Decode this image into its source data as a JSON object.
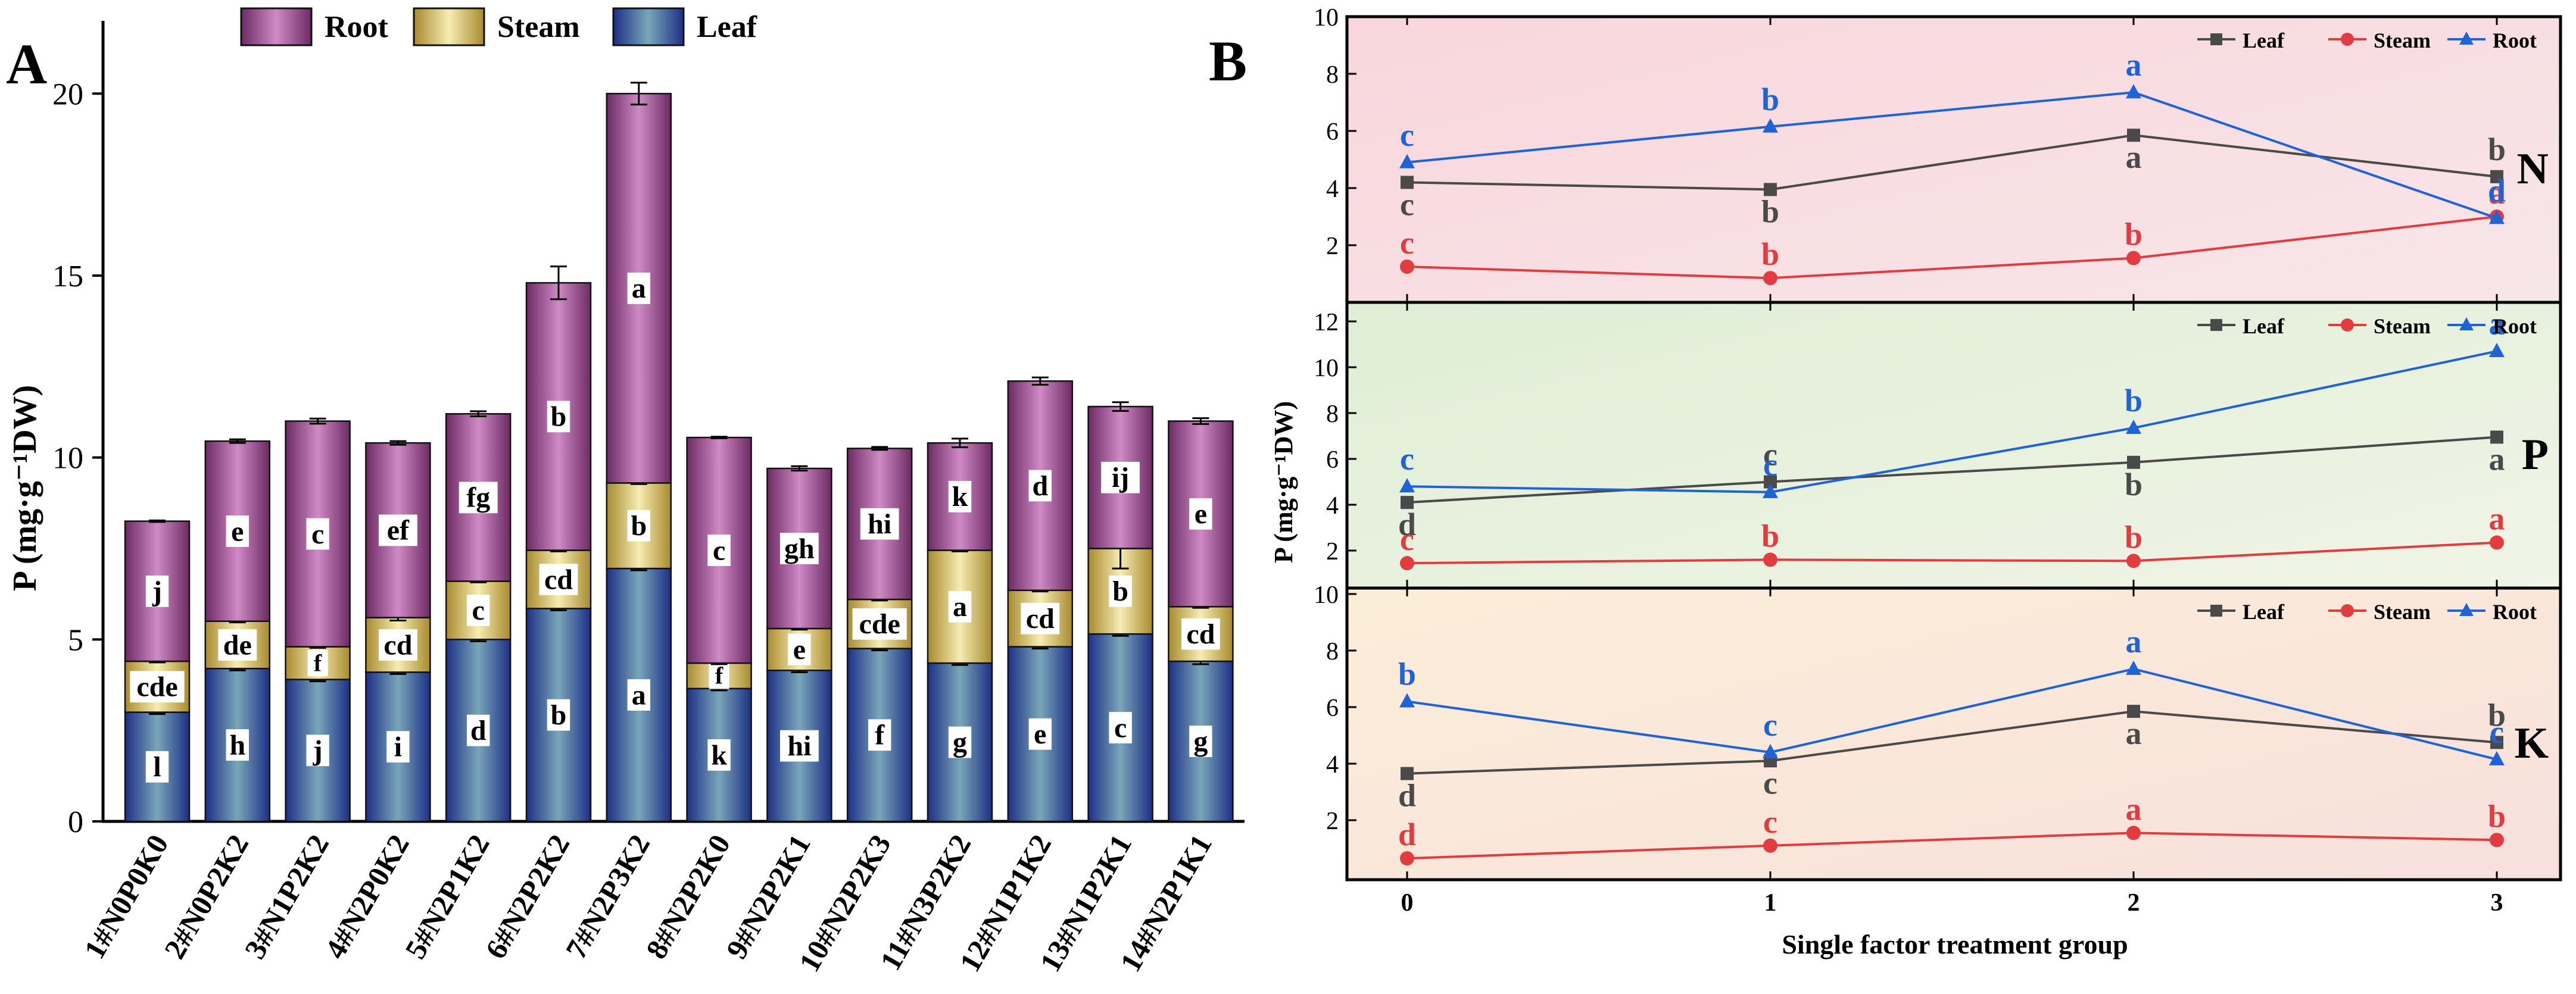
{
  "panelA": {
    "label": "A",
    "ylabel": "P (mg·g⁻¹DW)",
    "ylim": [
      0,
      22
    ],
    "yticks": [
      0,
      5,
      10,
      15,
      20
    ],
    "legend": [
      {
        "name": "Root",
        "color": "#a04d95"
      },
      {
        "name": "Steam",
        "color": "#d8c770"
      },
      {
        "name": "Leaf",
        "color": "#3d5fa3"
      }
    ]
  },
  "panelB": {
    "label": "B",
    "xlabel": "Single factor treatment group",
    "ylabel": "P (mg·g⁻¹DW)",
    "xticks": [
      0,
      1,
      2,
      3
    ],
    "colors": {
      "Leaf": "#4a4a4a",
      "Steam": "#e23c41",
      "Root": "#1f63d6"
    }
  },
  "chart_data": [
    {
      "type": "bar",
      "stacked": true,
      "title": "A",
      "xlabel": "",
      "ylabel": "P (mg·g⁻¹DW)",
      "ylim": [
        0,
        22
      ],
      "categories": [
        "1#N0P0K0",
        "2#N0P2K2",
        "3#N1P2K2",
        "4#N2P0K2",
        "5#N2P1K2",
        "6#N2P2K2",
        "7#N2P3K2",
        "8#N2P2K0",
        "9#N2P2K1",
        "10#N2P2K3",
        "11#N3P2K2",
        "12#N1P1K2",
        "13#N1P2K1",
        "14#N2P1K1"
      ],
      "series": [
        {
          "name": "Leaf",
          "values": [
            3.0,
            4.2,
            3.9,
            4.1,
            5.0,
            5.85,
            6.95,
            3.65,
            4.15,
            4.75,
            4.35,
            4.8,
            5.15,
            4.4
          ],
          "errors": [
            0.05,
            0.05,
            0.05,
            0.05,
            0.05,
            0.05,
            0.05,
            0.05,
            0.05,
            0.05,
            0.05,
            0.05,
            0.05,
            0.08
          ],
          "letters": [
            "l",
            "h",
            "j",
            "i",
            "d",
            "b",
            "a",
            "k",
            "hi",
            "f",
            "g",
            "e",
            "c",
            "g"
          ]
        },
        {
          "name": "Steam",
          "values": [
            1.4,
            1.3,
            0.9,
            1.5,
            1.6,
            1.6,
            2.35,
            0.7,
            1.15,
            1.35,
            3.1,
            1.55,
            2.35,
            1.5
          ],
          "errors": [
            0.03,
            0.03,
            0.03,
            0.08,
            0.03,
            0.03,
            0.03,
            0.03,
            0.03,
            0.03,
            0.03,
            0.03,
            0.55,
            0.03
          ],
          "letters": [
            "cde",
            "de",
            "f",
            "cd",
            "c",
            "cd",
            "b",
            "f",
            "e",
            "cde",
            "a",
            "cd",
            "b",
            "cd"
          ]
        },
        {
          "name": "Root",
          "values": [
            3.85,
            4.95,
            6.2,
            4.8,
            4.6,
            7.35,
            10.7,
            6.2,
            4.4,
            4.15,
            2.95,
            5.75,
            3.9,
            5.1
          ],
          "errors": [
            0.02,
            0.05,
            0.07,
            0.05,
            0.07,
            0.45,
            0.3,
            0.02,
            0.06,
            0.04,
            0.12,
            0.1,
            0.12,
            0.08
          ],
          "letters": [
            "j",
            "e",
            "c",
            "ef",
            "fg",
            "b",
            "a",
            "c",
            "gh",
            "hi",
            "k",
            "d",
            "ij",
            "e"
          ]
        }
      ]
    },
    {
      "type": "line",
      "title": "N",
      "x": [
        0,
        1,
        2,
        3
      ],
      "ylim": [
        0,
        10
      ],
      "yticks": [
        2,
        4,
        6,
        8,
        10
      ],
      "legend": "top-right",
      "series": [
        {
          "name": "Leaf",
          "values": [
            4.2,
            3.95,
            5.85,
            4.4
          ],
          "letters": [
            "c",
            "b",
            "a",
            "b"
          ]
        },
        {
          "name": "Steam",
          "values": [
            1.25,
            0.85,
            1.55,
            3.0
          ],
          "letters": [
            "c",
            "b",
            "b",
            "a"
          ]
        },
        {
          "name": "Root",
          "values": [
            4.9,
            6.15,
            7.35,
            2.95
          ],
          "letters": [
            "c",
            "b",
            "a",
            "d"
          ]
        }
      ]
    },
    {
      "type": "line",
      "title": "P",
      "x": [
        0,
        1,
        2,
        3
      ],
      "ylim": [
        0,
        13
      ],
      "yticks": [
        2,
        4,
        6,
        8,
        10,
        12
      ],
      "legend": "top-right",
      "series": [
        {
          "name": "Leaf",
          "values": [
            4.1,
            5.0,
            5.85,
            6.95
          ],
          "letters": [
            "d",
            "c",
            "b",
            "a"
          ]
        },
        {
          "name": "Steam",
          "values": [
            1.45,
            1.6,
            1.55,
            2.35
          ],
          "letters": [
            "c",
            "b",
            "b",
            "a"
          ]
        },
        {
          "name": "Root",
          "values": [
            4.8,
            4.55,
            7.35,
            10.7
          ],
          "letters": [
            "c",
            "c",
            "b",
            "a"
          ]
        }
      ]
    },
    {
      "type": "line",
      "title": "K",
      "x": [
        0,
        1,
        2,
        3
      ],
      "ylim": [
        0,
        10
      ],
      "yticks": [
        2,
        4,
        6,
        8,
        10
      ],
      "legend": "top-right",
      "series": [
        {
          "name": "Leaf",
          "values": [
            3.65,
            4.1,
            5.85,
            4.75
          ],
          "letters": [
            "d",
            "c",
            "a",
            "b"
          ]
        },
        {
          "name": "Steam",
          "values": [
            0.65,
            1.1,
            1.55,
            1.3
          ],
          "letters": [
            "d",
            "c",
            "a",
            "b"
          ]
        },
        {
          "name": "Root",
          "values": [
            6.2,
            4.4,
            7.35,
            4.15
          ],
          "letters": [
            "b",
            "c",
            "a",
            "c"
          ]
        }
      ]
    }
  ]
}
